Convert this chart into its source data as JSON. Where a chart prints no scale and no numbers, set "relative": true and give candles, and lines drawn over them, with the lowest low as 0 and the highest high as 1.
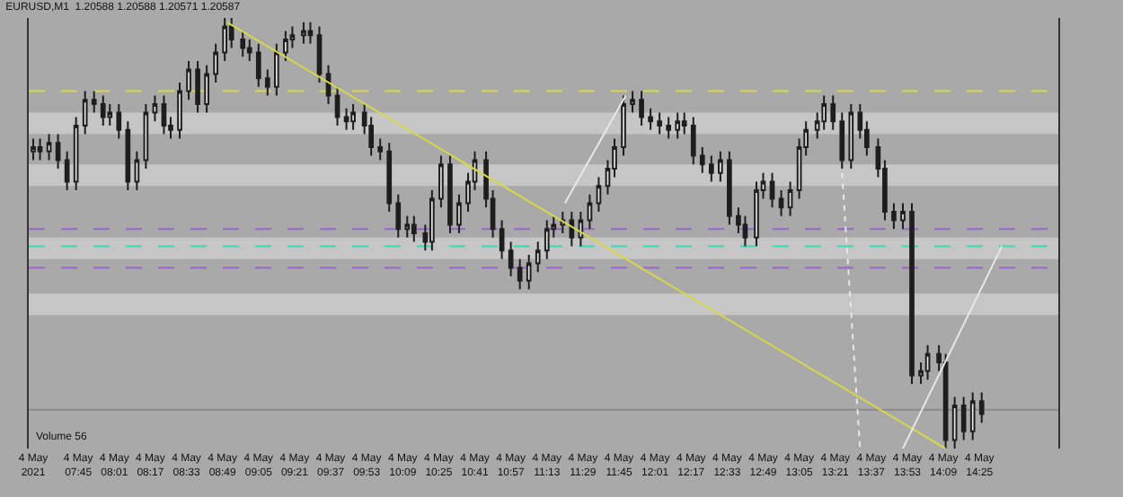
{
  "chart_data": {
    "type": "candlestick",
    "title": "EURUSD,M1  1.20588 1.20588 1.20571 1.20587",
    "relative": true,
    "tick_labels": "x",
    "color": "#1e1e1e",
    "x": [
      "2021-05-04T07:25",
      "2021-05-04T07:28",
      "2021-05-04T07:32",
      "2021-05-04T07:36",
      "2021-05-04T07:40",
      "2021-05-04T07:44",
      "2021-05-04T07:48",
      "2021-05-04T07:52",
      "2021-05-04T07:56",
      "2021-05-04T07:59",
      "2021-05-04T08:03",
      "2021-05-04T08:07",
      "2021-05-04T08:11",
      "2021-05-04T08:15",
      "2021-05-04T08:19",
      "2021-05-04T08:23",
      "2021-05-04T08:26",
      "2021-05-04T08:30",
      "2021-05-04T08:34",
      "2021-05-04T08:38",
      "2021-05-04T08:42",
      "2021-05-04T08:46",
      "2021-05-04T08:50",
      "2021-05-04T08:53",
      "2021-05-04T08:58",
      "2021-05-04T09:01",
      "2021-05-04T09:05",
      "2021-05-04T09:09",
      "2021-05-04T09:13",
      "2021-05-04T09:17",
      "2021-05-04T09:20",
      "2021-05-04T09:25",
      "2021-05-04T09:28",
      "2021-05-04T09:32",
      "2021-05-04T09:36",
      "2021-05-04T09:40",
      "2021-05-04T09:44",
      "2021-05-04T09:47",
      "2021-05-04T09:52",
      "2021-05-04T09:55",
      "2021-05-04T09:59",
      "2021-05-04T10:03",
      "2021-05-04T10:07",
      "2021-05-04T10:11",
      "2021-05-04T10:14",
      "2021-05-04T10:19",
      "2021-05-04T10:22",
      "2021-05-04T10:26",
      "2021-05-04T10:30",
      "2021-05-04T10:34",
      "2021-05-04T10:38",
      "2021-05-04T10:41",
      "2021-05-04T10:46",
      "2021-05-04T10:49",
      "2021-05-04T10:53",
      "2021-05-04T10:57",
      "2021-05-04T11:01",
      "2021-05-04T11:05",
      "2021-05-04T11:09",
      "2021-05-04T11:13",
      "2021-05-04T11:16",
      "2021-05-04T11:20",
      "2021-05-04T11:24",
      "2021-05-04T11:28",
      "2021-05-04T11:32",
      "2021-05-04T11:36",
      "2021-05-04T11:40",
      "2021-05-04T11:43",
      "2021-05-04T11:47",
      "2021-05-04T11:51",
      "2021-05-04T11:55",
      "2021-05-04T11:59",
      "2021-05-04T12:03",
      "2021-05-04T12:07",
      "2021-05-04T12:11",
      "2021-05-04T12:14",
      "2021-05-04T12:18",
      "2021-05-04T12:22",
      "2021-05-04T12:26",
      "2021-05-04T12:30",
      "2021-05-04T12:34",
      "2021-05-04T12:38",
      "2021-05-04T12:41",
      "2021-05-04T12:46",
      "2021-05-04T12:49",
      "2021-05-04T12:53",
      "2021-05-04T12:57",
      "2021-05-04T13:01",
      "2021-05-04T13:05",
      "2021-05-04T13:08",
      "2021-05-04T13:13",
      "2021-05-04T13:16",
      "2021-05-04T13:20",
      "2021-05-04T13:24",
      "2021-05-04T13:28",
      "2021-05-04T13:32",
      "2021-05-04T13:35",
      "2021-05-04T13:40",
      "2021-05-04T13:43",
      "2021-05-04T13:47",
      "2021-05-04T13:51",
      "2021-05-04T13:55",
      "2021-05-04T13:59",
      "2021-05-04T14:02",
      "2021-05-04T14:07",
      "2021-05-04T14:10",
      "2021-05-04T14:14",
      "2021-05-04T14:18",
      "2021-05-04T14:22",
      "2021-05-04T14:26"
    ],
    "ohlc": [
      [
        0.69,
        0.72,
        0.67,
        0.7
      ],
      [
        0.7,
        0.72,
        0.67,
        0.69
      ],
      [
        0.69,
        0.73,
        0.67,
        0.71
      ],
      [
        0.71,
        0.73,
        0.65,
        0.67
      ],
      [
        0.67,
        0.69,
        0.6,
        0.62
      ],
      [
        0.62,
        0.77,
        0.6,
        0.75
      ],
      [
        0.75,
        0.83,
        0.73,
        0.81
      ],
      [
        0.81,
        0.83,
        0.78,
        0.8
      ],
      [
        0.8,
        0.82,
        0.75,
        0.77
      ],
      [
        0.77,
        0.8,
        0.75,
        0.78
      ],
      [
        0.78,
        0.8,
        0.72,
        0.74
      ],
      [
        0.74,
        0.76,
        0.6,
        0.62
      ],
      [
        0.62,
        0.69,
        0.6,
        0.67
      ],
      [
        0.67,
        0.8,
        0.65,
        0.78
      ],
      [
        0.78,
        0.82,
        0.76,
        0.8
      ],
      [
        0.8,
        0.82,
        0.73,
        0.75
      ],
      [
        0.75,
        0.77,
        0.72,
        0.74
      ],
      [
        0.74,
        0.85,
        0.72,
        0.83
      ],
      [
        0.83,
        0.9,
        0.81,
        0.88
      ],
      [
        0.88,
        0.9,
        0.78,
        0.8
      ],
      [
        0.8,
        0.89,
        0.78,
        0.87
      ],
      [
        0.87,
        0.94,
        0.85,
        0.92
      ],
      [
        0.92,
        1.0,
        0.9,
        0.98
      ],
      [
        0.98,
        1.0,
        0.93,
        0.95
      ],
      [
        0.95,
        0.97,
        0.91,
        0.93
      ],
      [
        0.93,
        0.95,
        0.9,
        0.92
      ],
      [
        0.92,
        0.94,
        0.84,
        0.86
      ],
      [
        0.86,
        0.88,
        0.82,
        0.84
      ],
      [
        0.84,
        0.94,
        0.82,
        0.92
      ],
      [
        0.92,
        0.97,
        0.9,
        0.95
      ],
      [
        0.95,
        0.98,
        0.93,
        0.96
      ],
      [
        0.96,
        0.99,
        0.94,
        0.97
      ],
      [
        0.97,
        0.99,
        0.94,
        0.96
      ],
      [
        0.96,
        0.98,
        0.85,
        0.87
      ],
      [
        0.87,
        0.89,
        0.8,
        0.82
      ],
      [
        0.82,
        0.84,
        0.75,
        0.77
      ],
      [
        0.77,
        0.79,
        0.74,
        0.76
      ],
      [
        0.76,
        0.8,
        0.74,
        0.78
      ],
      [
        0.78,
        0.8,
        0.73,
        0.75
      ],
      [
        0.75,
        0.77,
        0.68,
        0.7
      ],
      [
        0.7,
        0.72,
        0.67,
        0.69
      ],
      [
        0.69,
        0.71,
        0.55,
        0.57
      ],
      [
        0.57,
        0.59,
        0.49,
        0.51
      ],
      [
        0.51,
        0.54,
        0.49,
        0.52
      ],
      [
        0.52,
        0.54,
        0.48,
        0.5
      ],
      [
        0.5,
        0.52,
        0.46,
        0.48
      ],
      [
        0.48,
        0.6,
        0.46,
        0.58
      ],
      [
        0.58,
        0.68,
        0.56,
        0.66
      ],
      [
        0.66,
        0.68,
        0.5,
        0.52
      ],
      [
        0.52,
        0.59,
        0.5,
        0.57
      ],
      [
        0.57,
        0.64,
        0.55,
        0.62
      ],
      [
        0.62,
        0.69,
        0.6,
        0.67
      ],
      [
        0.67,
        0.69,
        0.56,
        0.58
      ],
      [
        0.58,
        0.6,
        0.49,
        0.51
      ],
      [
        0.51,
        0.53,
        0.44,
        0.46
      ],
      [
        0.46,
        0.48,
        0.4,
        0.42
      ],
      [
        0.42,
        0.44,
        0.37,
        0.39
      ],
      [
        0.39,
        0.45,
        0.37,
        0.43
      ],
      [
        0.43,
        0.48,
        0.41,
        0.46
      ],
      [
        0.46,
        0.53,
        0.44,
        0.51
      ],
      [
        0.51,
        0.54,
        0.49,
        0.52
      ],
      [
        0.52,
        0.55,
        0.5,
        0.53
      ],
      [
        0.53,
        0.55,
        0.47,
        0.49
      ],
      [
        0.49,
        0.55,
        0.47,
        0.53
      ],
      [
        0.53,
        0.59,
        0.51,
        0.57
      ],
      [
        0.57,
        0.63,
        0.55,
        0.61
      ],
      [
        0.61,
        0.67,
        0.59,
        0.65
      ],
      [
        0.65,
        0.72,
        0.63,
        0.7
      ],
      [
        0.7,
        0.82,
        0.68,
        0.8
      ],
      [
        0.8,
        0.83,
        0.78,
        0.81
      ],
      [
        0.81,
        0.83,
        0.75,
        0.77
      ],
      [
        0.77,
        0.79,
        0.74,
        0.76
      ],
      [
        0.76,
        0.78,
        0.73,
        0.75
      ],
      [
        0.75,
        0.77,
        0.72,
        0.74
      ],
      [
        0.74,
        0.78,
        0.72,
        0.76
      ],
      [
        0.76,
        0.78,
        0.73,
        0.75
      ],
      [
        0.75,
        0.77,
        0.66,
        0.68
      ],
      [
        0.68,
        0.7,
        0.64,
        0.66
      ],
      [
        0.66,
        0.68,
        0.62,
        0.64
      ],
      [
        0.64,
        0.69,
        0.62,
        0.67
      ],
      [
        0.67,
        0.69,
        0.52,
        0.54
      ],
      [
        0.54,
        0.56,
        0.5,
        0.52
      ],
      [
        0.52,
        0.54,
        0.47,
        0.49
      ],
      [
        0.49,
        0.62,
        0.47,
        0.6
      ],
      [
        0.6,
        0.64,
        0.58,
        0.62
      ],
      [
        0.62,
        0.64,
        0.56,
        0.58
      ],
      [
        0.58,
        0.6,
        0.54,
        0.56
      ],
      [
        0.56,
        0.62,
        0.54,
        0.6
      ],
      [
        0.6,
        0.72,
        0.58,
        0.7
      ],
      [
        0.7,
        0.76,
        0.68,
        0.74
      ],
      [
        0.74,
        0.78,
        0.72,
        0.76
      ],
      [
        0.76,
        0.82,
        0.74,
        0.8
      ],
      [
        0.8,
        0.82,
        0.74,
        0.76
      ],
      [
        0.76,
        0.78,
        0.65,
        0.67
      ],
      [
        0.67,
        0.8,
        0.65,
        0.78
      ],
      [
        0.78,
        0.8,
        0.72,
        0.74
      ],
      [
        0.74,
        0.76,
        0.68,
        0.7
      ],
      [
        0.7,
        0.72,
        0.63,
        0.65
      ],
      [
        0.65,
        0.67,
        0.53,
        0.55
      ],
      [
        0.55,
        0.57,
        0.51,
        0.53
      ],
      [
        0.53,
        0.57,
        0.51,
        0.55
      ],
      [
        0.55,
        0.57,
        0.15,
        0.17
      ],
      [
        0.17,
        0.2,
        0.15,
        0.18
      ],
      [
        0.18,
        0.24,
        0.16,
        0.22
      ],
      [
        0.22,
        0.24,
        0.18,
        0.2
      ],
      [
        0.2,
        0.22,
        0.0,
        0.02
      ],
      [
        0.02,
        0.12,
        0.0,
        0.1
      ],
      [
        0.1,
        0.12,
        0.02,
        0.04
      ],
      [
        0.04,
        0.13,
        0.02,
        0.11
      ],
      [
        0.11,
        0.13,
        0.06,
        0.08
      ]
    ],
    "series": [
      {
        "type": "line",
        "x": [
          "2021-05-04T08:51",
          "2021-05-04T14:10"
        ],
        "values": [
          0.99,
          0.0
        ],
        "color": "#d8d84a",
        "line_style": "solid"
      },
      {
        "type": "line",
        "x": [
          "2021-05-04T11:21",
          "2021-05-04T11:48"
        ],
        "values": [
          0.57,
          0.82
        ],
        "color": "#e8e8e8",
        "line_style": "solid"
      },
      {
        "type": "line",
        "x": [
          "2021-05-04T13:51",
          "2021-05-04T14:35"
        ],
        "values": [
          0.0,
          0.47
        ],
        "color": "#e8e8e8",
        "line_style": "solid"
      },
      {
        "type": "line",
        "x": [
          "2021-05-04T13:24",
          "2021-05-04T13:32"
        ],
        "values": [
          0.64,
          0.0
        ],
        "color": "#e8e8e8",
        "line_style": "dotted"
      }
    ],
    "xlim": [
      "2021-05-04T07:23",
      "2021-05-04T15:00"
    ],
    "xticks": [
      {
        "value": "2021-05-04T07:25",
        "label": "4 May 2021"
      },
      {
        "value": "2021-05-04T07:45",
        "label": "4 May 07:45"
      },
      {
        "value": "2021-05-04T08:01",
        "label": "4 May 08:01"
      },
      {
        "value": "2021-05-04T08:17",
        "label": "4 May 08:17"
      },
      {
        "value": "2021-05-04T08:33",
        "label": "4 May 08:33"
      },
      {
        "value": "2021-05-04T08:49",
        "label": "4 May 08:49"
      },
      {
        "value": "2021-05-04T09:05",
        "label": "4 May 09:05"
      },
      {
        "value": "2021-05-04T09:21",
        "label": "4 May 09:21"
      },
      {
        "value": "2021-05-04T09:37",
        "label": "4 May 09:37"
      },
      {
        "value": "2021-05-04T09:53",
        "label": "4 May 09:53"
      },
      {
        "value": "2021-05-04T10:09",
        "label": "4 May 10:09"
      },
      {
        "value": "2021-05-04T10:25",
        "label": "4 May 10:25"
      },
      {
        "value": "2021-05-04T10:41",
        "label": "4 May 10:41"
      },
      {
        "value": "2021-05-04T10:57",
        "label": "4 May 10:57"
      },
      {
        "value": "2021-05-04T11:13",
        "label": "4 May 11:13"
      },
      {
        "value": "2021-05-04T11:29",
        "label": "4 May 11:29"
      },
      {
        "value": "2021-05-04T11:45",
        "label": "4 May 11:45"
      },
      {
        "value": "2021-05-04T12:01",
        "label": "4 May 12:01"
      },
      {
        "value": "2021-05-04T12:17",
        "label": "4 May 12:17"
      },
      {
        "value": "2021-05-04T12:33",
        "label": "4 May 12:33"
      },
      {
        "value": "2021-05-04T12:49",
        "label": "4 May 12:49"
      },
      {
        "value": "2021-05-04T13:05",
        "label": "4 May 13:05"
      },
      {
        "value": "2021-05-04T13:21",
        "label": "4 May 13:21"
      },
      {
        "value": "2021-05-04T13:37",
        "label": "4 May 13:37"
      },
      {
        "value": "2021-05-04T13:53",
        "label": "4 May 13:53"
      },
      {
        "value": "2021-05-04T14:09",
        "label": "4 May 14:09"
      },
      {
        "value": "2021-05-04T14:25",
        "label": "4 May 14:25"
      }
    ],
    "bands": [
      {
        "axis": "y",
        "from": 0.73,
        "to": 0.78,
        "color": "#c6c6c6"
      },
      {
        "axis": "y",
        "from": 0.61,
        "to": 0.66,
        "color": "#c6c6c6"
      },
      {
        "axis": "y",
        "from": 0.44,
        "to": 0.49,
        "color": "#c6c6c6"
      },
      {
        "axis": "y",
        "from": 0.31,
        "to": 0.36,
        "color": "#c6c6c6"
      }
    ],
    "ref_lines": [
      {
        "axis": "y",
        "value": 0.83,
        "color": "#d8d84a",
        "line_style": "dashed"
      },
      {
        "axis": "y",
        "value": 0.47,
        "color": "#40d8b0",
        "line_style": "dashed"
      },
      {
        "axis": "y",
        "value": 0.09,
        "color": "#8a8a8a",
        "line_style": "solid"
      },
      {
        "axis": "y",
        "value": 0.51,
        "color": "#9966cc",
        "line_style": "dashed"
      },
      {
        "axis": "y",
        "value": 0.42,
        "color": "#9966cc",
        "line_style": "dashed"
      }
    ],
    "annotations": [
      "Volume 56"
    ]
  }
}
